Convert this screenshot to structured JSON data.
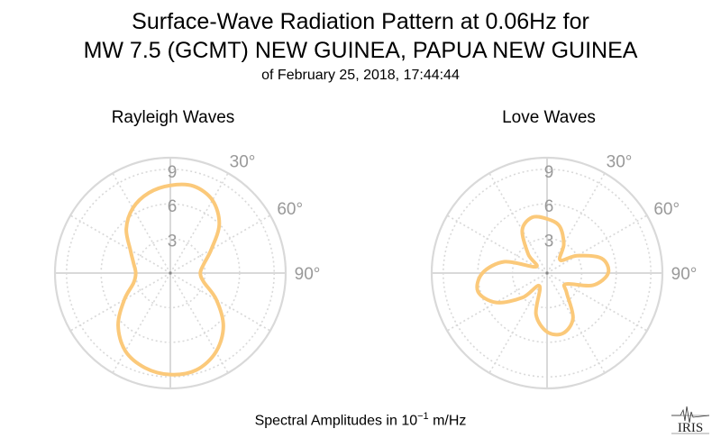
{
  "title_line1": "Surface-Wave Radiation Pattern at 0.06Hz for",
  "title_line2": "MW 7.5 (GCMT) NEW GUINEA, PAPUA NEW GUINEA",
  "title_line3": "of February 25, 2018, 17:44:44",
  "footer": {
    "prefix": "Spectral Amplitudes in ",
    "base": "10",
    "exponent": "−1",
    "unit": " m/Hz"
  },
  "logo_text": "IRIS",
  "colors": {
    "curve": "#fbc97a",
    "grid": "#d9d9d9",
    "tick_label": "#999999"
  },
  "chart_data": [
    {
      "type": "line",
      "subtype": "polar",
      "title": "Rayleigh Waves",
      "radial_ticks": [
        "3",
        "6",
        "9"
      ],
      "radial_range": [
        0,
        10
      ],
      "angle_ticks": [
        "30°",
        "60°",
        "90°"
      ],
      "angular_grid_step_deg": 30,
      "grid": true,
      "series": [
        {
          "theta_deg": [
            0,
            15,
            30,
            45,
            60,
            75,
            90,
            105,
            120,
            135,
            150,
            165,
            180,
            195,
            210,
            225,
            240,
            255,
            270,
            285,
            300,
            315,
            330,
            345
          ],
          "r": [
            7.6,
            7.8,
            7.3,
            6.0,
            4.1,
            3.0,
            2.6,
            3.0,
            4.6,
            6.5,
            7.9,
            8.7,
            8.8,
            8.5,
            7.8,
            6.4,
            4.6,
            3.3,
            3.0,
            3.3,
            4.0,
            5.4,
            6.5,
            7.2
          ]
        }
      ]
    },
    {
      "type": "line",
      "subtype": "polar",
      "title": "Love Waves",
      "radial_ticks": [
        "3",
        "6",
        "9"
      ],
      "radial_range": [
        0,
        10
      ],
      "angle_ticks": [
        "30°",
        "60°",
        "90°"
      ],
      "angular_grid_step_deg": 30,
      "grid": true,
      "series": [
        {
          "theta_deg": [
            0,
            15,
            30,
            45,
            60,
            75,
            90,
            105,
            120,
            135,
            150,
            165,
            180,
            195,
            210,
            225,
            240,
            255,
            270,
            285,
            300,
            315,
            330,
            345
          ],
          "r": [
            4.7,
            4.2,
            2.9,
            1.6,
            3.0,
            4.9,
            5.3,
            4.1,
            1.9,
            2.4,
            4.5,
            5.4,
            5.1,
            3.7,
            1.3,
            3.0,
            5.1,
            6.2,
            5.6,
            3.8,
            1.1,
            2.3,
            4.3,
            5.0
          ]
        }
      ]
    }
  ]
}
